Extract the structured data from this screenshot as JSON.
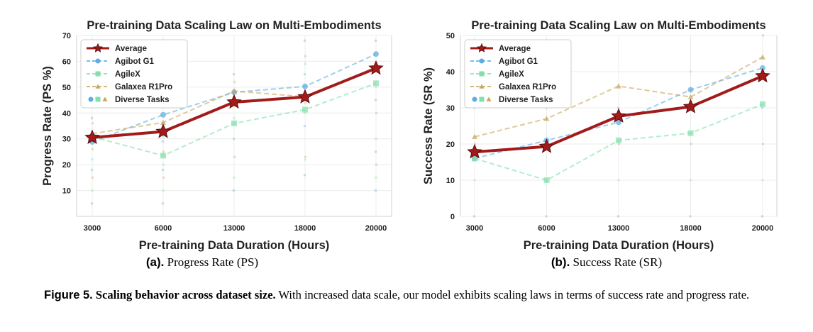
{
  "chart_data": [
    {
      "id": "a",
      "type": "line",
      "title": "Pre-training Data Scaling Law on Multi-Embodiments",
      "xlabel": "Pre-training Data Duration (Hours)",
      "ylabel": "Progress Rate (PS %)",
      "categories": [
        "3000",
        "6000",
        "13000",
        "18000",
        "20000"
      ],
      "ylim": [
        0,
        70
      ],
      "yticks": [
        10,
        20,
        30,
        40,
        50,
        60,
        70
      ],
      "grid": true,
      "legend_position": "top-left",
      "series": [
        {
          "name": "Average",
          "values": [
            30.5,
            32.8,
            44.2,
            46.2,
            57.3
          ],
          "color": "#a31a1a",
          "marker": "star",
          "style": "solid"
        },
        {
          "name": "Agibot G1",
          "values": [
            28.8,
            39.3,
            48.0,
            50.3,
            62.8
          ],
          "color": "#5dade2",
          "marker": "circle",
          "style": "dashed"
        },
        {
          "name": "AgileX",
          "values": [
            30.8,
            23.5,
            36.0,
            41.3,
            51.5
          ],
          "color": "#82e0aa",
          "marker": "square",
          "style": "dashed"
        },
        {
          "name": "Galaxea R1Pro",
          "values": [
            32.0,
            36.3,
            48.5,
            46.3,
            57.3
          ],
          "color": "#c8a658",
          "marker": "triangle",
          "style": "dashed"
        }
      ],
      "diverse_tasks_label": "Diverse Tasks",
      "diverse_tasks_values": [
        [
          5,
          10,
          15,
          18,
          22,
          26,
          30,
          33,
          36,
          38
        ],
        [
          5,
          10,
          15,
          18,
          20,
          25,
          29,
          31,
          34,
          36
        ],
        [
          10,
          15,
          23,
          30,
          38,
          43,
          45,
          49,
          52,
          55
        ],
        [
          16,
          22,
          23,
          35,
          40,
          44,
          55,
          59,
          62,
          68
        ],
        [
          10,
          15,
          20,
          25,
          30,
          40,
          45,
          50,
          63,
          68
        ]
      ]
    },
    {
      "id": "b",
      "type": "line",
      "title": "Pre-training Data Scaling Law on Multi-Embodiments",
      "xlabel": "Pre-training Data Duration (Hours)",
      "ylabel": "Success Rate (SR %)",
      "categories": [
        "3000",
        "6000",
        "13000",
        "18000",
        "20000"
      ],
      "ylim": [
        0,
        50
      ],
      "yticks": [
        0,
        10,
        20,
        30,
        40,
        50
      ],
      "grid": true,
      "legend_position": "top-left",
      "series": [
        {
          "name": "Average",
          "values": [
            17.8,
            19.3,
            27.7,
            30.3,
            38.8
          ],
          "color": "#a31a1a",
          "marker": "star",
          "style": "solid"
        },
        {
          "name": "Agibot G1",
          "values": [
            16.0,
            21.0,
            26.0,
            35.0,
            41.0
          ],
          "color": "#5dade2",
          "marker": "circle",
          "style": "dashed"
        },
        {
          "name": "AgileX",
          "values": [
            16.0,
            10.0,
            21.0,
            23.0,
            31.0
          ],
          "color": "#82e0aa",
          "marker": "square",
          "style": "dashed"
        },
        {
          "name": "Galaxea R1Pro",
          "values": [
            22.0,
            27.0,
            36.0,
            33.0,
            44.0
          ],
          "color": "#c8a658",
          "marker": "triangle",
          "style": "dashed"
        }
      ],
      "diverse_tasks_label": "Diverse Tasks",
      "diverse_tasks_values": [
        [
          0,
          10,
          20,
          30
        ],
        [
          0,
          10,
          20,
          30
        ],
        [
          0,
          10,
          20,
          30
        ],
        [
          0,
          10,
          20,
          30,
          40
        ],
        [
          0,
          10,
          20,
          30,
          40,
          50
        ]
      ]
    }
  ],
  "captions": {
    "a": {
      "label": "(a).",
      "text": "Progress Rate (PS)"
    },
    "b": {
      "label": "(b).",
      "text": "Success Rate (SR)"
    }
  },
  "figure_caption": {
    "number": "Figure 5.",
    "heading": "Scaling behavior across dataset size.",
    "body": "With increased data scale, our model exhibits scaling laws in terms of success rate and progress rate."
  }
}
